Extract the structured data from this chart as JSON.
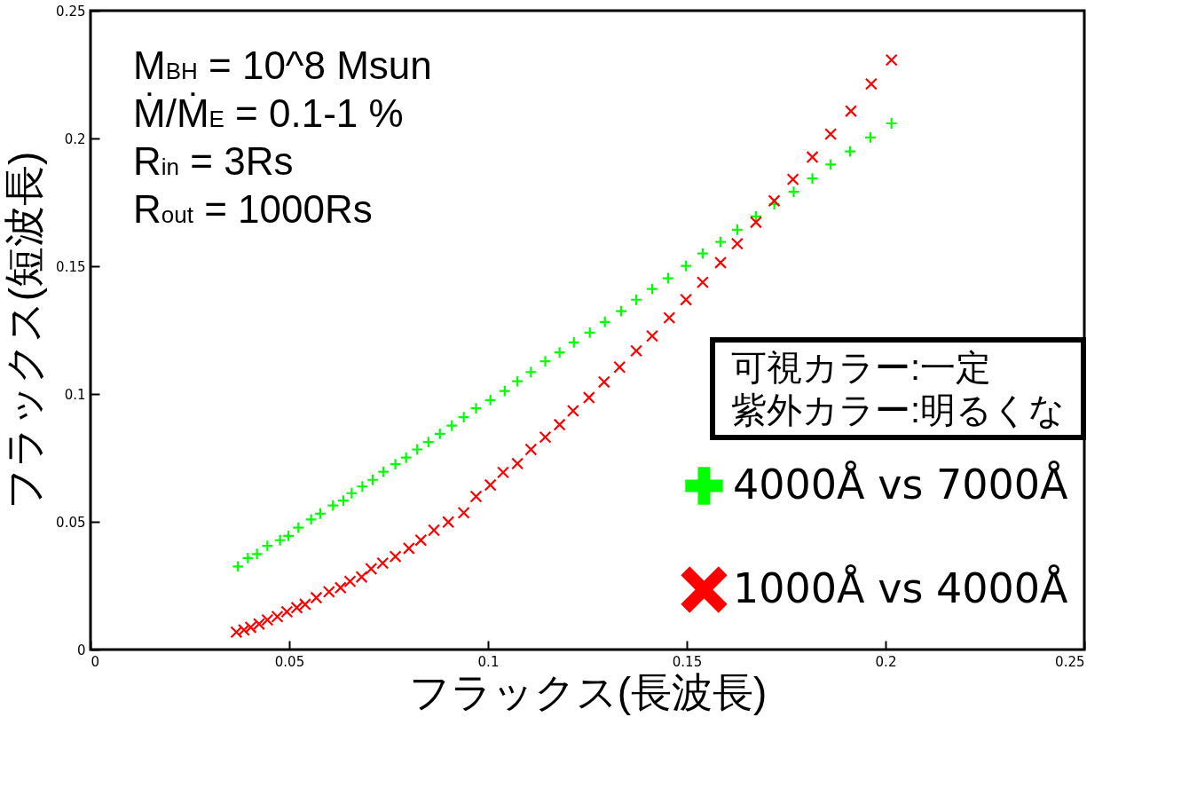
{
  "chart_data": {
    "type": "scatter",
    "xlabel": "フラックス(長波長)",
    "ylabel": "フラックス(短波長)",
    "xlim": [
      0,
      0.25
    ],
    "ylim": [
      0,
      0.25
    ],
    "xticks": [
      0,
      0.05,
      0.1,
      0.15,
      0.2,
      0.25
    ],
    "yticks": [
      0,
      0.05,
      0.1,
      0.15,
      0.2,
      0.25
    ],
    "legend": "bottom right",
    "annotations": [
      "M$_{BH}$ = 10^8 Msun",
      "Ṁ/Ṁ$_{E}$ = 0.1-1 %",
      "R$_{in}$ = 3Rs",
      "R$_{out}$ = 1000Rs",
      "可視カラー:一定",
      "紫外カラー:明るくな"
    ],
    "series": [
      {
        "name": "4000Å vs 7000Å",
        "color": "#00ff00",
        "marker": "cross",
        "x": [
          0.0371,
          0.0396,
          0.0419,
          0.0445,
          0.0477,
          0.0498,
          0.0523,
          0.0555,
          0.0578,
          0.061,
          0.0636,
          0.0657,
          0.0684,
          0.071,
          0.0737,
          0.0767,
          0.0794,
          0.0822,
          0.085,
          0.0879,
          0.0909,
          0.0939,
          0.097,
          0.1006,
          0.1042,
          0.1074,
          0.1108,
          0.1144,
          0.118,
          0.1216,
          0.1256,
          0.1294,
          0.1335,
          0.1373,
          0.1413,
          0.1453,
          0.1498,
          0.154,
          0.1585,
          0.1627,
          0.1674,
          0.172,
          0.1769,
          0.1816,
          0.1862,
          0.1911,
          0.1962,
          0.2015
        ],
        "values": [
          0.0325,
          0.0358,
          0.0374,
          0.0406,
          0.0428,
          0.0445,
          0.0477,
          0.0509,
          0.0532,
          0.0564,
          0.0583,
          0.0612,
          0.0638,
          0.0664,
          0.0696,
          0.0725,
          0.0751,
          0.0783,
          0.0812,
          0.0844,
          0.0876,
          0.0909,
          0.0944,
          0.0976,
          0.1012,
          0.105,
          0.1086,
          0.1128,
          0.1163,
          0.1202,
          0.124,
          0.1282,
          0.1324,
          0.1369,
          0.1411,
          0.1453,
          0.1501,
          0.155,
          0.1595,
          0.1643,
          0.1695,
          0.1743,
          0.1791,
          0.1843,
          0.1898,
          0.1949,
          0.2004,
          0.2059
        ]
      },
      {
        "name": "1000Å vs 4000Å",
        "color": "#ff0000",
        "marker": "x",
        "x": [
          0.0367,
          0.0386,
          0.0403,
          0.0424,
          0.0445,
          0.047,
          0.0494,
          0.0519,
          0.054,
          0.0568,
          0.06,
          0.0629,
          0.0653,
          0.0682,
          0.0706,
          0.0735,
          0.0767,
          0.0801,
          0.0831,
          0.0864,
          0.09,
          0.0939,
          0.097,
          0.1006,
          0.1038,
          0.1074,
          0.1108,
          0.1144,
          0.118,
          0.1214,
          0.1254,
          0.1292,
          0.1331,
          0.1373,
          0.1413,
          0.1456,
          0.1498,
          0.154,
          0.1585,
          0.1627,
          0.1674,
          0.172,
          0.1767,
          0.1816,
          0.1862,
          0.1913,
          0.1964,
          0.2015
        ],
        "values": [
          0.0068,
          0.0077,
          0.0087,
          0.01,
          0.0116,
          0.0129,
          0.0148,
          0.0164,
          0.0177,
          0.0203,
          0.0226,
          0.0242,
          0.0267,
          0.0284,
          0.0316,
          0.0338,
          0.0364,
          0.0396,
          0.0428,
          0.0467,
          0.0499,
          0.0535,
          0.0599,
          0.0644,
          0.0693,
          0.0728,
          0.0783,
          0.0831,
          0.088,
          0.0934,
          0.0986,
          0.1047,
          0.1105,
          0.1169,
          0.1227,
          0.1298,
          0.1369,
          0.1437,
          0.1514,
          0.1588,
          0.1672,
          0.1756,
          0.184,
          0.1927,
          0.2017,
          0.2107,
          0.2213,
          0.2307
        ]
      }
    ]
  }
}
